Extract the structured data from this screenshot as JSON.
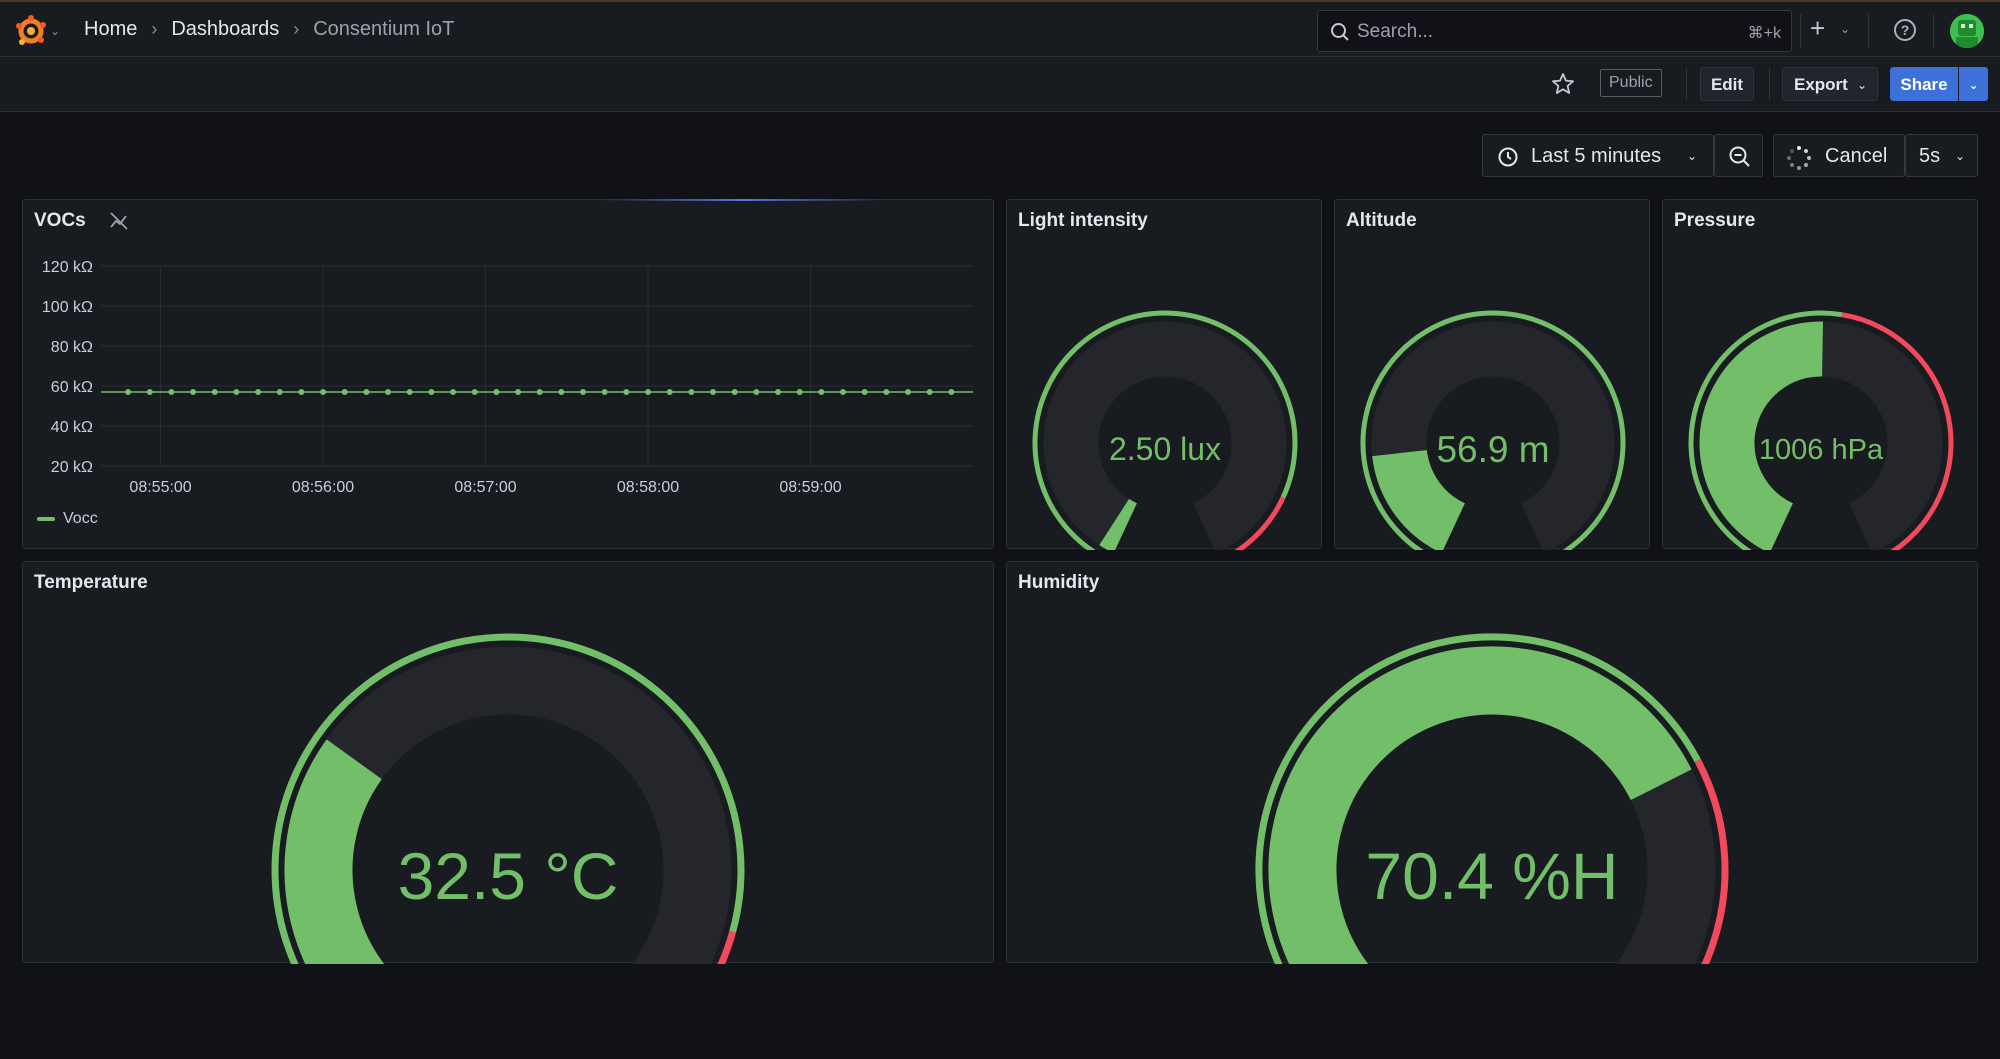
{
  "breadcrumb": [
    "Home",
    "Dashboards",
    "Consentium IoT"
  ],
  "search": {
    "placeholder": "Search...",
    "shortcut": "⌘+k"
  },
  "toolbar": {
    "public_label": "Public",
    "edit_label": "Edit",
    "export_label": "Export",
    "share_label": "Share"
  },
  "time": {
    "range_label": "Last 5 minutes",
    "cancel_label": "Cancel",
    "interval_label": "5s"
  },
  "colors": {
    "green": "#73bf69",
    "red": "#f2495c",
    "track": "#25262b",
    "accent_blue": "#3d71d9"
  },
  "panels": {
    "vocs": {
      "title": "VOCs"
    },
    "light": {
      "title": "Light intensity",
      "display": "2.50 lux",
      "min": 0,
      "max": 100,
      "value": 2.5,
      "threshold_fraction": 0.87
    },
    "altitude": {
      "title": "Altitude",
      "display": "56.9 m",
      "min": 0,
      "max": 300,
      "value": 56.9,
      "threshold_fraction": 0.97
    },
    "pressure": {
      "title": "Pressure",
      "display": "1006 hPa",
      "min": 0,
      "max": 2000,
      "value": 1006,
      "threshold_fraction": 0.53
    },
    "temperature": {
      "title": "Temperature",
      "display": "32.5 °C",
      "min": 0,
      "max": 100,
      "value": 32.5,
      "threshold_fraction": 0.84
    },
    "humidity": {
      "title": "Humidity",
      "display": "70.4 %H",
      "min": 0,
      "max": 100,
      "value": 70.4,
      "threshold_fraction": 0.7
    }
  },
  "chart_data": {
    "type": "line",
    "title": "VOCs",
    "ylabel": "",
    "xlabel": "",
    "yunit": "kΩ",
    "ylim": [
      20,
      120
    ],
    "yticks": [
      "20 kΩ",
      "40 kΩ",
      "60 kΩ",
      "80 kΩ",
      "100 kΩ",
      "120 kΩ"
    ],
    "xticks": [
      "08:55:00",
      "08:56:00",
      "08:57:00",
      "08:58:00",
      "08:59:00"
    ],
    "xticks_seconds": [
      0,
      60,
      120,
      180,
      240
    ],
    "grid": true,
    "legend_position": "bottom-left",
    "series": [
      {
        "name": "Vocc",
        "color": "#73bf69",
        "x_seconds": [
          -12,
          -4,
          4,
          12,
          20,
          28,
          36,
          44,
          52,
          60,
          68,
          76,
          84,
          92,
          100,
          108,
          116,
          124,
          132,
          140,
          148,
          156,
          164,
          172,
          180,
          188,
          196,
          204,
          212,
          220,
          228,
          236,
          244,
          252,
          260,
          268,
          276,
          284,
          292
        ],
        "values": [
          57,
          57,
          57,
          57,
          57,
          57,
          57,
          57,
          57,
          57,
          57,
          57,
          57,
          57,
          57,
          57,
          57,
          57,
          57,
          57,
          57,
          57,
          57,
          57,
          57,
          57,
          57,
          57,
          57,
          57,
          57,
          57,
          57,
          57,
          57,
          57,
          57,
          57,
          57
        ]
      }
    ]
  }
}
